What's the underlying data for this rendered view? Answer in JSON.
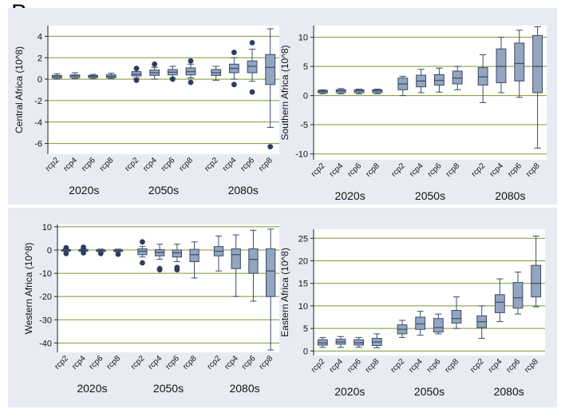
{
  "figure": {
    "panel_letter": "B"
  },
  "chart_data": [
    {
      "type": "boxplot",
      "ylabel": "Central Africa (10^8)",
      "ylim": [
        -7,
        5
      ],
      "yticks": [
        -6,
        -4,
        -2,
        0,
        2,
        4
      ],
      "grid": "horizontal",
      "categories": [
        "rcp2",
        "rcp4",
        "rcp6",
        "rcp8",
        "rcp2",
        "rcp4",
        "rcp6",
        "rcp8",
        "rcp2",
        "rcp4",
        "rcp6",
        "rcp8"
      ],
      "groups": [
        "2020s",
        "2050s",
        "2080s"
      ],
      "boxes": [
        {
          "q1": 0.1,
          "median": 0.25,
          "q3": 0.35,
          "low": 0.0,
          "high": 0.5,
          "outliers": []
        },
        {
          "q1": 0.15,
          "median": 0.3,
          "q3": 0.4,
          "low": 0.05,
          "high": 0.6,
          "outliers": []
        },
        {
          "q1": 0.15,
          "median": 0.25,
          "q3": 0.35,
          "low": 0.05,
          "high": 0.45,
          "outliers": []
        },
        {
          "q1": 0.15,
          "median": 0.25,
          "q3": 0.4,
          "low": 0.05,
          "high": 0.55,
          "outliers": []
        },
        {
          "q1": 0.3,
          "median": 0.45,
          "q3": 0.7,
          "low": 0.1,
          "high": 0.7,
          "outliers": [
            1.0,
            -0.1
          ]
        },
        {
          "q1": 0.35,
          "median": 0.6,
          "q3": 0.85,
          "low": 0.0,
          "high": 1.1,
          "outliers": [
            1.4
          ]
        },
        {
          "q1": 0.4,
          "median": 0.65,
          "q3": 0.9,
          "low": 0.1,
          "high": 1.2,
          "outliers": [
            0.0
          ]
        },
        {
          "q1": 0.4,
          "median": 0.7,
          "q3": 1.05,
          "low": 0.1,
          "high": 1.4,
          "outliers": [
            1.7,
            -0.3
          ]
        },
        {
          "q1": 0.35,
          "median": 0.6,
          "q3": 0.9,
          "low": -0.1,
          "high": 1.2,
          "outliers": []
        },
        {
          "q1": 0.6,
          "median": 1.0,
          "q3": 1.4,
          "low": 0.0,
          "high": 2.0,
          "outliers": [
            2.5,
            -0.5
          ]
        },
        {
          "q1": 0.6,
          "median": 1.2,
          "q3": 1.7,
          "low": -0.2,
          "high": 2.8,
          "outliers": [
            3.4,
            -1.2
          ]
        },
        {
          "q1": -0.5,
          "median": 1.1,
          "q3": 2.3,
          "low": -4.5,
          "high": 4.7,
          "outliers": [
            -6.3
          ]
        }
      ]
    },
    {
      "type": "boxplot",
      "ylabel": "Southern Africa (10^8)",
      "ylim": [
        -11,
        12
      ],
      "yticks": [
        -10,
        -5,
        0,
        5,
        10
      ],
      "grid": "horizontal",
      "categories": [
        "rcp2",
        "rcp4",
        "rcp6",
        "rcp8",
        "rcp2",
        "rcp4",
        "rcp6",
        "rcp8",
        "rcp2",
        "rcp4",
        "rcp6",
        "rcp8"
      ],
      "groups": [
        "2020s",
        "2050s",
        "2080s"
      ],
      "boxes": [
        {
          "q1": 0.5,
          "median": 0.7,
          "q3": 0.9,
          "low": 0.3,
          "high": 1.0,
          "outliers": []
        },
        {
          "q1": 0.5,
          "median": 0.8,
          "q3": 1.0,
          "low": 0.3,
          "high": 1.2,
          "outliers": []
        },
        {
          "q1": 0.5,
          "median": 0.8,
          "q3": 1.0,
          "low": 0.3,
          "high": 1.1,
          "outliers": []
        },
        {
          "q1": 0.5,
          "median": 0.8,
          "q3": 1.0,
          "low": 0.3,
          "high": 1.1,
          "outliers": []
        },
        {
          "q1": 1.0,
          "median": 2.0,
          "q3": 3.0,
          "low": 0.0,
          "high": 3.3,
          "outliers": []
        },
        {
          "q1": 1.5,
          "median": 2.5,
          "q3": 3.5,
          "low": 0.5,
          "high": 4.5,
          "outliers": []
        },
        {
          "q1": 1.8,
          "median": 2.6,
          "q3": 3.6,
          "low": 0.6,
          "high": 4.7,
          "outliers": []
        },
        {
          "q1": 2.0,
          "median": 3.0,
          "q3": 4.2,
          "low": 1.0,
          "high": 5.0,
          "outliers": []
        },
        {
          "q1": 1.8,
          "median": 3.2,
          "q3": 4.8,
          "low": -1.2,
          "high": 7.0,
          "outliers": []
        },
        {
          "q1": 2.2,
          "median": 5.0,
          "q3": 8.0,
          "low": 0.5,
          "high": 10.0,
          "outliers": []
        },
        {
          "q1": 2.5,
          "median": 5.5,
          "q3": 9.0,
          "low": -0.3,
          "high": 11.2,
          "outliers": []
        },
        {
          "q1": 0.5,
          "median": 5.0,
          "q3": 10.3,
          "low": -9.0,
          "high": 11.8,
          "outliers": []
        }
      ]
    },
    {
      "type": "boxplot",
      "ylabel": "Western Africa (10^8)",
      "ylim": [
        -44,
        11
      ],
      "yticks": [
        -40,
        -30,
        -20,
        -10,
        0,
        10
      ],
      "grid": "horizontal",
      "categories": [
        "rcp2",
        "rcp4",
        "rcp6",
        "rcp8",
        "rcp2",
        "rcp4",
        "rcp6",
        "rcp8",
        "rcp2",
        "rcp4",
        "rcp6",
        "rcp8"
      ],
      "groups": [
        "2020s",
        "2050s",
        "2080s"
      ],
      "boxes": [
        {
          "q1": -0.4,
          "median": -0.1,
          "q3": 0.2,
          "low": -0.6,
          "high": 0.5,
          "outliers": [
            1.0,
            -1.5
          ]
        },
        {
          "q1": -0.4,
          "median": -0.1,
          "q3": 0.2,
          "low": -0.6,
          "high": 0.5,
          "outliers": [
            1.2,
            -1.2
          ]
        },
        {
          "q1": -0.5,
          "median": -0.2,
          "q3": 0.1,
          "low": -0.8,
          "high": 0.4,
          "outliers": [
            -1.5
          ]
        },
        {
          "q1": -0.5,
          "median": -0.2,
          "q3": 0.1,
          "low": -0.8,
          "high": 0.4,
          "outliers": [
            -1.8
          ]
        },
        {
          "q1": -2.0,
          "median": -0.5,
          "q3": 0.5,
          "low": -3.0,
          "high": 1.5,
          "outliers": [
            3.5,
            -5.5
          ]
        },
        {
          "q1": -2.5,
          "median": -1.0,
          "q3": 0.2,
          "low": -4.0,
          "high": 2.5,
          "outliers": [
            -8.0,
            -8.5
          ]
        },
        {
          "q1": -3.0,
          "median": -1.2,
          "q3": 0.0,
          "low": -5.0,
          "high": 2.5,
          "outliers": [
            -7.5,
            -8.5
          ]
        },
        {
          "q1": -5.0,
          "median": -2.0,
          "q3": 0.3,
          "low": -12.0,
          "high": 3.5,
          "outliers": []
        },
        {
          "q1": -2.5,
          "median": -0.5,
          "q3": 1.5,
          "low": -9.0,
          "high": 6.0,
          "outliers": []
        },
        {
          "q1": -8.0,
          "median": -2.0,
          "q3": 0.5,
          "low": -20.0,
          "high": 6.5,
          "outliers": []
        },
        {
          "q1": -10.0,
          "median": -4.0,
          "q3": 0.5,
          "low": -22.0,
          "high": 8.5,
          "outliers": []
        },
        {
          "q1": -20.0,
          "median": -9.0,
          "q3": 0.5,
          "low": -43.0,
          "high": 9.0,
          "outliers": []
        }
      ]
    },
    {
      "type": "boxplot",
      "ylabel": "Eastern Africa (10^8)",
      "ylim": [
        -1,
        27
      ],
      "yticks": [
        0,
        5,
        10,
        15,
        20,
        25
      ],
      "grid": "horizontal",
      "categories": [
        "rcp2",
        "rcp4",
        "rcp6",
        "rcp8",
        "rcp2",
        "rcp4",
        "rcp6",
        "rcp8",
        "rcp2",
        "rcp4",
        "rcp6",
        "rcp8"
      ],
      "groups": [
        "2020s",
        "2050s",
        "2080s"
      ],
      "boxes": [
        {
          "q1": 1.3,
          "median": 1.8,
          "q3": 2.5,
          "low": 0.8,
          "high": 3.0,
          "outliers": []
        },
        {
          "q1": 1.5,
          "median": 2.0,
          "q3": 2.6,
          "low": 0.8,
          "high": 3.2,
          "outliers": []
        },
        {
          "q1": 1.3,
          "median": 1.8,
          "q3": 2.5,
          "low": 0.8,
          "high": 3.0,
          "outliers": []
        },
        {
          "q1": 1.2,
          "median": 2.0,
          "q3": 2.8,
          "low": 0.7,
          "high": 3.8,
          "outliers": []
        },
        {
          "q1": 3.8,
          "median": 4.8,
          "q3": 5.8,
          "low": 3.0,
          "high": 6.8,
          "outliers": []
        },
        {
          "q1": 4.8,
          "median": 6.0,
          "q3": 7.5,
          "low": 3.5,
          "high": 8.8,
          "outliers": []
        },
        {
          "q1": 4.2,
          "median": 5.2,
          "q3": 7.2,
          "low": 3.8,
          "high": 8.2,
          "outliers": []
        },
        {
          "q1": 6.2,
          "median": 7.2,
          "q3": 9.0,
          "low": 5.0,
          "high": 12.0,
          "outliers": []
        },
        {
          "q1": 5.2,
          "median": 6.5,
          "q3": 7.8,
          "low": 2.8,
          "high": 10.0,
          "outliers": []
        },
        {
          "q1": 8.5,
          "median": 10.8,
          "q3": 12.5,
          "low": 6.5,
          "high": 16.0,
          "outliers": []
        },
        {
          "q1": 9.5,
          "median": 11.8,
          "q3": 15.2,
          "low": 8.2,
          "high": 17.5,
          "outliers": []
        },
        {
          "q1": 12.0,
          "median": 15.0,
          "q3": 19.0,
          "low": 9.8,
          "high": 25.5,
          "outliers": []
        }
      ]
    }
  ],
  "colors": {
    "outer_background": "#e8ecf2",
    "plot_background": "#ffffff",
    "gridline": "#7a9a2e",
    "box_fill": "#93a6bf",
    "box_stroke": "#3c4a66",
    "outlier": "#2e3c5e",
    "axis": "#222222",
    "text": "#111111"
  }
}
